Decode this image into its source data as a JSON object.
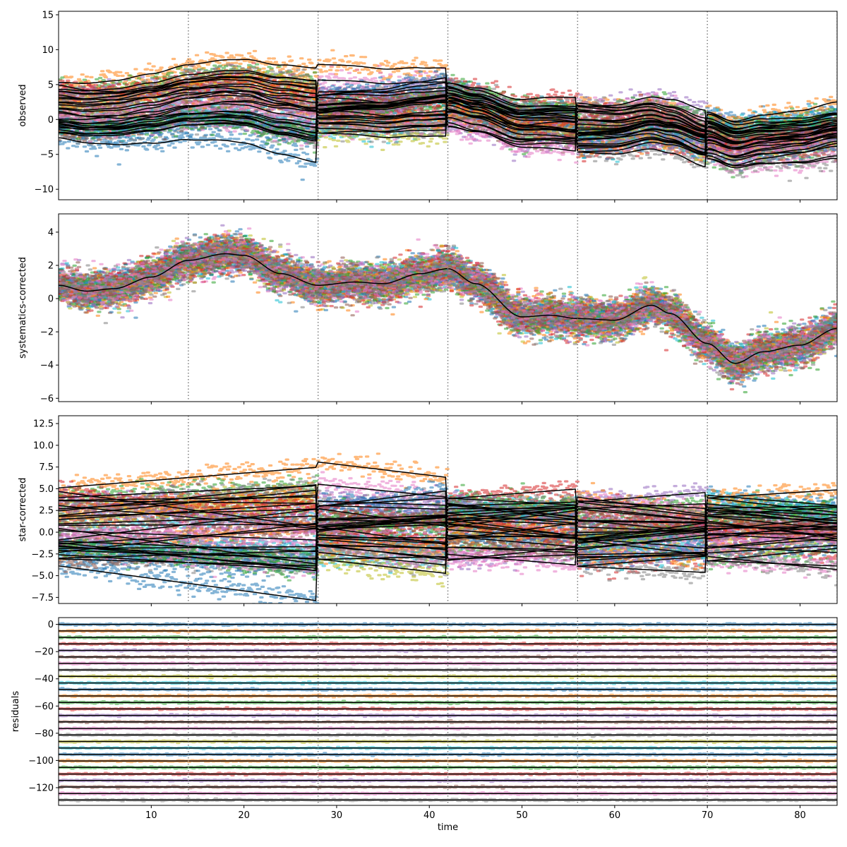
{
  "chart_data": [
    {
      "type": "scatter",
      "ylabel": "observed",
      "xlim": [
        0,
        84
      ],
      "ylim": [
        -11.5,
        15.5
      ],
      "x_ticks": [
        10,
        20,
        30,
        40,
        50,
        60,
        70,
        80
      ],
      "y_ticks": [
        -10,
        -5,
        0,
        5,
        10,
        15
      ],
      "vlines": [
        14,
        28,
        42,
        56,
        70,
        84
      ],
      "n_series": 28,
      "noise_sd": 0.7,
      "segment_breaks": [
        28,
        42,
        56,
        70
      ]
    },
    {
      "type": "scatter",
      "ylabel": "systematics-corrected",
      "xlim": [
        0,
        84
      ],
      "ylim": [
        -6.2,
        5.1
      ],
      "x_ticks": [
        10,
        20,
        30,
        40,
        50,
        60,
        70,
        80
      ],
      "y_ticks": [
        -6,
        -4,
        -2,
        0,
        2,
        4
      ],
      "vlines": [
        14,
        28,
        42,
        56,
        70,
        84
      ],
      "n_series": 28,
      "noise_sd": 0.55,
      "model_line": [
        [
          0,
          0.8
        ],
        [
          3,
          0.45
        ],
        [
          6,
          0.6
        ],
        [
          10,
          1.3
        ],
        [
          14,
          2.3
        ],
        [
          18,
          2.7
        ],
        [
          20,
          2.6
        ],
        [
          24,
          1.5
        ],
        [
          28,
          0.8
        ],
        [
          32,
          1.0
        ],
        [
          35,
          0.9
        ],
        [
          39,
          1.5
        ],
        [
          42,
          1.8
        ],
        [
          45,
          0.9
        ],
        [
          50,
          -1.1
        ],
        [
          53,
          -1.0
        ],
        [
          56,
          -1.2
        ],
        [
          60,
          -1.3
        ],
        [
          64,
          -0.4
        ],
        [
          66,
          -0.9
        ],
        [
          70,
          -2.7
        ],
        [
          73,
          -3.9
        ],
        [
          76,
          -3.2
        ],
        [
          80,
          -2.8
        ],
        [
          84,
          -1.8
        ]
      ]
    },
    {
      "type": "scatter",
      "ylabel": "star-corrected",
      "xlim": [
        0,
        84
      ],
      "ylim": [
        -8.2,
        13.4
      ],
      "x_ticks": [
        10,
        20,
        30,
        40,
        50,
        60,
        70,
        80
      ],
      "y_ticks": [
        -7.5,
        -5.0,
        -2.5,
        0.0,
        2.5,
        5.0,
        7.5,
        10.0,
        12.5
      ],
      "vlines": [
        14,
        28,
        42,
        56,
        70,
        84
      ],
      "n_series": 28,
      "noise_sd": 0.6,
      "segment_breaks": [
        28,
        42,
        56,
        70
      ]
    },
    {
      "type": "scatter",
      "ylabel": "residuals",
      "xlabel": "time",
      "xlim": [
        0,
        84
      ],
      "ylim": [
        -133,
        5
      ],
      "x_ticks": [
        10,
        20,
        30,
        40,
        50,
        60,
        70,
        80
      ],
      "y_ticks": [
        0,
        -20,
        -40,
        -60,
        -80,
        -100,
        -120
      ],
      "vlines": [
        14,
        28,
        42,
        56,
        70,
        84
      ],
      "n_series": 28,
      "offset_step": -4.78,
      "noise_sd": 0.35
    }
  ],
  "colors": {
    "tab10": [
      "#1f77b4",
      "#ff7f0e",
      "#2ca02c",
      "#d62728",
      "#9467bd",
      "#8c564b",
      "#e377c2",
      "#7f7f7f",
      "#bcbd22",
      "#17becf"
    ],
    "model": "#000000",
    "vline": "#7f7f7f"
  }
}
